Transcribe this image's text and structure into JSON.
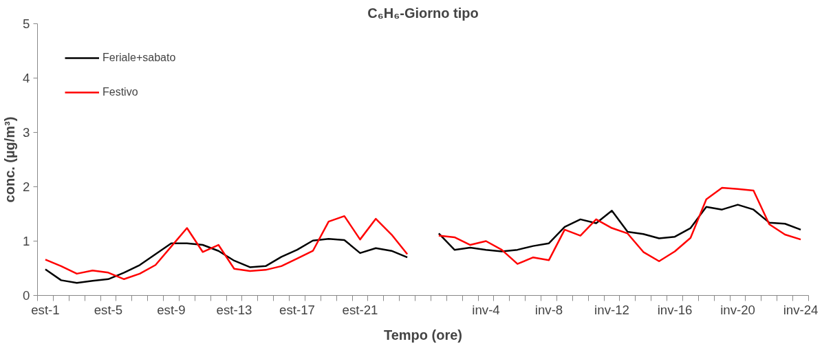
{
  "chart_data": {
    "type": "line",
    "title": "C₆H₆-Giorno tipo",
    "xlabel": "Tempo (ore)",
    "ylabel": "conc. (µg/m³)",
    "categories": [
      "est-1",
      null,
      null,
      null,
      "est-5",
      null,
      null,
      null,
      "est-9",
      null,
      null,
      null,
      "est-13",
      null,
      null,
      null,
      "est-17",
      null,
      null,
      null,
      "est-21",
      null,
      null,
      null,
      null,
      null,
      null,
      null,
      "inv-4",
      null,
      null,
      null,
      "inv-8",
      null,
      null,
      null,
      "inv-12",
      null,
      null,
      null,
      "inv-16",
      null,
      null,
      null,
      "inv-20",
      null,
      null,
      null,
      "inv-24"
    ],
    "series": [
      {
        "name": "Feriale+sabato",
        "color": "#000000",
        "values": [
          0.48,
          0.28,
          0.23,
          0.27,
          0.3,
          0.42,
          0.56,
          0.76,
          0.96,
          0.96,
          0.93,
          0.82,
          0.64,
          0.52,
          0.54,
          0.71,
          0.84,
          1.01,
          1.04,
          1.02,
          0.78,
          0.87,
          0.82,
          0.7,
          null,
          1.14,
          0.84,
          0.88,
          0.84,
          0.81,
          0.84,
          0.91,
          0.96,
          1.26,
          1.4,
          1.33,
          1.56,
          1.17,
          1.13,
          1.05,
          1.08,
          1.24,
          1.63,
          1.58,
          1.67,
          1.58,
          1.34,
          1.32,
          1.21
        ]
      },
      {
        "name": "Festivo",
        "color": "#ff0000",
        "values": [
          0.66,
          0.54,
          0.4,
          0.46,
          0.42,
          0.3,
          0.4,
          0.56,
          0.9,
          1.24,
          0.8,
          0.93,
          0.49,
          0.45,
          0.47,
          0.54,
          0.68,
          0.82,
          1.36,
          1.46,
          1.03,
          1.41,
          1.12,
          0.76,
          null,
          1.1,
          1.07,
          0.93,
          1.0,
          0.84,
          0.58,
          0.7,
          0.65,
          1.21,
          1.1,
          1.4,
          1.24,
          1.14,
          0.8,
          0.63,
          0.81,
          1.06,
          1.77,
          1.98,
          1.96,
          1.93,
          1.31,
          1.12,
          1.03
        ]
      }
    ],
    "ylim": [
      0,
      5
    ],
    "yticks": [
      0,
      1,
      2,
      3,
      4,
      5
    ],
    "grid": false,
    "legend": "top left",
    "marker": "none",
    "line_style": "solid"
  }
}
